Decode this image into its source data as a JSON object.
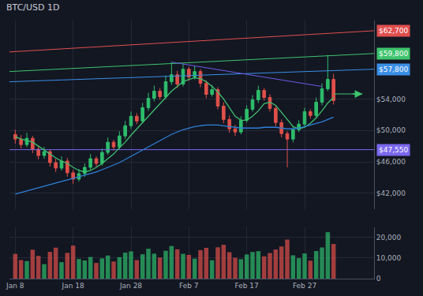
{
  "chart_data": {
    "type": "candlestick",
    "title": "BTC/USD 1D",
    "categories": [
      "Jan 8",
      null,
      null,
      null,
      null,
      null,
      null,
      null,
      null,
      null,
      "Jan 18",
      null,
      null,
      null,
      null,
      null,
      null,
      null,
      null,
      null,
      "Jan 28",
      null,
      null,
      null,
      null,
      null,
      null,
      null,
      null,
      null,
      "Feb 7",
      null,
      null,
      null,
      null,
      null,
      null,
      null,
      null,
      null,
      "Feb 17",
      null,
      null,
      null,
      null,
      null,
      null,
      null,
      null,
      null,
      "Feb 27",
      null,
      null,
      null,
      null,
      null
    ],
    "open": [
      49500,
      48900,
      48200,
      49000,
      47600,
      46800,
      47300,
      45900,
      45200,
      46100,
      44600,
      43800,
      44500,
      45300,
      46400,
      45800,
      47200,
      48500,
      47900,
      49300,
      50600,
      51800,
      51200,
      52900,
      54100,
      55000,
      54300,
      56200,
      57100,
      55900,
      57800,
      56800,
      57500,
      56000,
      54600,
      55200,
      53100,
      51400,
      50200,
      49800,
      51300,
      52700,
      53900,
      55100,
      54200,
      52800,
      51000,
      49600,
      48900,
      50100,
      50800,
      52400,
      51900,
      53600,
      55300,
      56500
    ],
    "high": [
      50100,
      49400,
      49700,
      49300,
      48100,
      47900,
      47600,
      46400,
      46700,
      46500,
      45000,
      45100,
      45800,
      47000,
      46700,
      47700,
      49100,
      48800,
      49900,
      51200,
      52400,
      52200,
      53500,
      54800,
      55700,
      55400,
      57000,
      58700,
      57600,
      58500,
      58100,
      58200,
      57800,
      56400,
      55800,
      55500,
      53600,
      51900,
      50700,
      51800,
      53200,
      54500,
      55700,
      55400,
      54600,
      53100,
      51400,
      49900,
      50600,
      51300,
      52900,
      52700,
      54200,
      56000,
      59600,
      57200
    ],
    "low": [
      48300,
      47700,
      47900,
      47100,
      46300,
      46400,
      45400,
      44700,
      44900,
      44100,
      43200,
      43500,
      44100,
      45000,
      45400,
      45500,
      46900,
      47400,
      47600,
      48900,
      50200,
      50800,
      50900,
      52500,
      53700,
      53900,
      54000,
      55800,
      55400,
      55600,
      56300,
      56500,
      55500,
      54100,
      54300,
      52700,
      50900,
      49700,
      49300,
      49500,
      51000,
      52400,
      53500,
      53800,
      52400,
      50500,
      49100,
      45300,
      48500,
      49800,
      50400,
      51500,
      51600,
      53200,
      55000,
      53300
    ],
    "close": [
      48900,
      48200,
      49000,
      47600,
      46800,
      47300,
      45900,
      45200,
      46100,
      44600,
      43800,
      44500,
      45300,
      46400,
      45800,
      47200,
      48500,
      47900,
      49300,
      50600,
      51800,
      51200,
      52900,
      54100,
      55000,
      54300,
      56200,
      57100,
      55900,
      57800,
      56800,
      57500,
      56000,
      54600,
      55200,
      53100,
      51400,
      50200,
      49800,
      51300,
      52700,
      53900,
      55100,
      54200,
      52800,
      51000,
      49600,
      48900,
      50100,
      50800,
      52400,
      51900,
      53600,
      55300,
      56500,
      53800
    ],
    "volume": [
      12000,
      9000,
      8500,
      14000,
      11000,
      7000,
      13000,
      15000,
      8000,
      12500,
      16000,
      9500,
      8800,
      10500,
      7600,
      9800,
      11200,
      8300,
      10400,
      12600,
      13200,
      9000,
      11800,
      14500,
      12100,
      10200,
      13500,
      15800,
      14200,
      12000,
      11500,
      9700,
      13800,
      14900,
      8900,
      15200,
      16400,
      12800,
      10100,
      9400,
      11700,
      12900,
      13300,
      10800,
      12400,
      14100,
      15600,
      18900,
      11300,
      9900,
      12200,
      8700,
      13400,
      15100,
      22500,
      16800
    ],
    "moving_averages": [
      {
        "color": "#3fbf6f",
        "values": [
          49200,
          48900,
          48700,
          48500,
          48000,
          47500,
          47000,
          46500,
          46100,
          45800,
          45300,
          44900,
          44700,
          44900,
          45300,
          45800,
          46400,
          47000,
          47800,
          48500,
          49400,
          50200,
          51000,
          51800,
          52700,
          53400,
          54200,
          55000,
          55600,
          56200,
          56500,
          56700,
          56600,
          56200,
          55600,
          54900,
          54000,
          52900,
          51800,
          51300,
          51300,
          51800,
          52500,
          53400,
          53600,
          53200,
          52300,
          51300,
          50500,
          50200,
          50400,
          50900,
          51600,
          52500,
          53500,
          54200
        ]
      },
      {
        "color": "#2f7fd6",
        "values": [
          41900,
          42100,
          42300,
          42500,
          42700,
          42900,
          43100,
          43300,
          43500,
          43700,
          43900,
          44100,
          44300,
          44500,
          44700,
          45000,
          45300,
          45600,
          45900,
          46300,
          46700,
          47100,
          47500,
          47900,
          48300,
          48700,
          49100,
          49500,
          49800,
          50100,
          50300,
          50500,
          50600,
          50700,
          50700,
          50700,
          50600,
          50500,
          50400,
          50300,
          50300,
          50300,
          50300,
          50400,
          50400,
          50400,
          50300,
          50200,
          50200,
          50300,
          50500,
          50700,
          50900,
          51100,
          51400,
          51700
        ]
      }
    ],
    "lines": [
      {
        "x": [
          -1,
          62
        ],
        "values": [
          60000,
          62700
        ],
        "color": "#e04f4f",
        "label": "$62,700"
      },
      {
        "x": [
          -1,
          62
        ],
        "values": [
          57500,
          59800
        ],
        "color": "#3ec46d",
        "label": "$59,800"
      },
      {
        "x": [
          -1,
          62
        ],
        "values": [
          56200,
          57800
        ],
        "color": "#3a8ee6",
        "label": "$57,800"
      },
      {
        "x": [
          -1,
          62
        ],
        "values": [
          47550,
          47550
        ],
        "color": "#7b68ee",
        "label": "$47,550"
      },
      {
        "x": [
          27,
          53
        ],
        "values": [
          58700,
          55600
        ],
        "color": "#6c5ce7"
      },
      {
        "x": [
          55,
          60
        ],
        "values": [
          54650,
          54650
        ],
        "color": "#3ec46d",
        "marker": "arrow"
      }
    ],
    "xlim": [
      -1,
      62
    ],
    "ylim": [
      40000,
      64000
    ],
    "yticks": [
      {
        "value": 42000,
        "label": "$42,000"
      },
      {
        "value": 46000,
        "label": "$46,000"
      },
      {
        "value": 50000,
        "label": "$50,000"
      },
      {
        "value": 54000,
        "label": "$54,000"
      }
    ],
    "y2lim": [
      0,
      25000
    ],
    "y2ticks": [
      0,
      {
        "value": 10000,
        "label": "10,000"
      },
      {
        "value": 20000,
        "label": "20,000"
      }
    ],
    "grid": true
  }
}
